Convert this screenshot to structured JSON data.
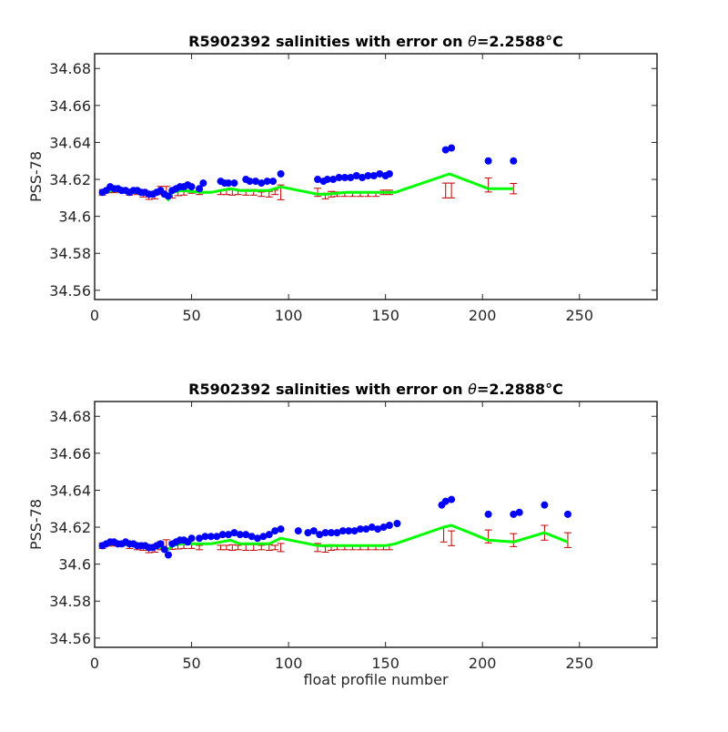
{
  "figure": {
    "xlabel": "float profile number"
  },
  "colors": {
    "float": "#0000ff",
    "mapped": "#00ff00",
    "error": "#c00000"
  },
  "chart_data": [
    {
      "type": "scatter",
      "title_prefix": "R5902392 salinities with error on ",
      "title_theta": "θ",
      "title_value": "=2.2588",
      "title_unit": "°C",
      "ylabel": "PSS-78",
      "xlabel": "",
      "xlim": [
        0,
        290
      ],
      "ylim": [
        34.555,
        34.688
      ],
      "xticks": [
        0,
        50,
        100,
        150,
        200,
        250
      ],
      "yticks": [
        34.56,
        34.58,
        34.6,
        34.62,
        34.64,
        34.66,
        34.68
      ],
      "ytick_labels": [
        "34.56",
        "34.58",
        "34.6",
        "34.62",
        "34.64",
        "34.66",
        "34.68"
      ],
      "grid": false,
      "float_salinity": {
        "x": [
          4,
          6,
          8,
          10,
          12,
          14,
          16,
          18,
          20,
          22,
          24,
          26,
          28,
          30,
          32,
          34,
          36,
          38,
          40,
          42,
          44,
          46,
          48,
          50,
          54,
          56,
          65,
          67,
          69,
          72,
          78,
          80,
          83,
          86,
          89,
          92,
          96,
          115,
          118,
          120,
          123,
          126,
          129,
          132,
          135,
          138,
          141,
          144,
          147,
          150,
          152,
          181,
          184,
          203,
          216
        ],
        "y": [
          34.613,
          34.614,
          34.616,
          34.615,
          34.615,
          34.614,
          34.614,
          34.613,
          34.614,
          34.614,
          34.613,
          34.613,
          34.612,
          34.612,
          34.613,
          34.614,
          34.612,
          34.611,
          34.614,
          34.615,
          34.616,
          34.616,
          34.617,
          34.616,
          34.615,
          34.618,
          34.619,
          34.618,
          34.618,
          34.618,
          34.62,
          34.619,
          34.619,
          34.618,
          34.619,
          34.619,
          34.623,
          34.62,
          34.619,
          34.62,
          34.62,
          34.621,
          34.621,
          34.621,
          34.622,
          34.621,
          34.622,
          34.622,
          34.623,
          34.622,
          34.623,
          34.636,
          34.637,
          34.63,
          34.63
        ]
      },
      "mapped_salinity": {
        "x": [
          4,
          10,
          20,
          30,
          35,
          38,
          40,
          45,
          55,
          60,
          70,
          75,
          80,
          90,
          96,
          115,
          120,
          130,
          140,
          150,
          155,
          183,
          203,
          216
        ],
        "y": [
          34.613,
          34.614,
          34.613,
          34.612,
          34.613,
          34.609,
          34.613,
          34.614,
          34.613,
          34.613,
          34.615,
          34.614,
          34.614,
          34.614,
          34.616,
          34.612,
          34.612,
          34.613,
          34.613,
          34.613,
          34.613,
          34.623,
          34.615,
          34.615
        ]
      },
      "mapped_error": {
        "x": [
          4,
          7,
          10,
          14,
          18,
          22,
          25,
          28,
          31,
          34,
          37,
          40,
          43,
          46,
          50,
          54,
          65,
          68,
          71,
          74,
          78,
          82,
          86,
          90,
          93,
          96,
          115,
          119,
          122,
          125,
          129,
          133,
          137,
          141,
          145,
          149,
          152,
          181,
          184,
          203,
          216
        ],
        "y": [
          34.613,
          34.614,
          34.614,
          34.614,
          34.613,
          34.613,
          34.612,
          34.611,
          34.611,
          34.614,
          34.614,
          34.612,
          34.613,
          34.613,
          34.614,
          34.613,
          34.613,
          34.613,
          34.613,
          34.613,
          34.613,
          34.613,
          34.612,
          34.612,
          34.613,
          34.613,
          34.613,
          34.611,
          34.612,
          34.612,
          34.612,
          34.612,
          34.612,
          34.612,
          34.612,
          34.613,
          34.613,
          34.614,
          34.614,
          34.617,
          34.615
        ],
        "err": [
          0.0015,
          0.0012,
          0.0012,
          0.0012,
          0.0015,
          0.0012,
          0.0015,
          0.0018,
          0.0015,
          0.0022,
          0.0022,
          0.002,
          0.0018,
          0.0015,
          0.0015,
          0.0012,
          0.0012,
          0.0012,
          0.0015,
          0.0012,
          0.0015,
          0.0015,
          0.0012,
          0.0015,
          0.0012,
          0.004,
          0.0022,
          0.0015,
          0.0015,
          0.0012,
          0.0012,
          0.0012,
          0.0012,
          0.0012,
          0.0012,
          0.0012,
          0.0012,
          0.004,
          0.004,
          0.0038,
          0.0028
        ]
      }
    },
    {
      "type": "scatter",
      "title_prefix": "R5902392 salinities with error on ",
      "title_theta": "θ",
      "title_value": "=2.2888",
      "title_unit": "°C",
      "ylabel": "PSS-78",
      "xlabel": "float profile number",
      "xlim": [
        0,
        290
      ],
      "ylim": [
        34.555,
        34.688
      ],
      "xticks": [
        0,
        50,
        100,
        150,
        200,
        250
      ],
      "yticks": [
        34.56,
        34.58,
        34.6,
        34.62,
        34.64,
        34.66,
        34.68
      ],
      "ytick_labels": [
        "34.56",
        "34.58",
        "34.6",
        "34.62",
        "34.64",
        "34.66",
        "34.68"
      ],
      "grid": false,
      "float_salinity": {
        "x": [
          4,
          6,
          8,
          10,
          12,
          14,
          16,
          18,
          20,
          22,
          24,
          26,
          28,
          30,
          32,
          34,
          36,
          38,
          40,
          42,
          44,
          46,
          48,
          50,
          54,
          57,
          60,
          63,
          66,
          69,
          72,
          75,
          78,
          81,
          84,
          87,
          90,
          93,
          96,
          105,
          110,
          113,
          116,
          119,
          122,
          125,
          128,
          131,
          134,
          137,
          140,
          143,
          146,
          149,
          152,
          156,
          179,
          181,
          184,
          203,
          216,
          219,
          232,
          244
        ],
        "y": [
          34.61,
          34.611,
          34.612,
          34.612,
          34.611,
          34.611,
          34.612,
          34.611,
          34.611,
          34.61,
          34.61,
          34.61,
          34.609,
          34.609,
          34.61,
          34.611,
          34.608,
          34.605,
          34.611,
          34.612,
          34.613,
          34.613,
          34.612,
          34.614,
          34.614,
          34.615,
          34.615,
          34.615,
          34.616,
          34.616,
          34.617,
          34.616,
          34.616,
          34.615,
          34.614,
          34.615,
          34.616,
          34.618,
          34.619,
          34.618,
          34.617,
          34.618,
          34.616,
          34.617,
          34.617,
          34.617,
          34.618,
          34.618,
          34.618,
          34.619,
          34.619,
          34.62,
          34.619,
          34.62,
          34.621,
          34.622,
          34.632,
          34.634,
          34.635,
          34.627,
          34.627,
          34.628,
          34.632,
          34.627
        ]
      },
      "mapped_salinity": {
        "x": [
          4,
          10,
          20,
          30,
          35,
          38,
          40,
          45,
          55,
          60,
          70,
          75,
          80,
          90,
          96,
          115,
          120,
          130,
          140,
          150,
          155,
          180,
          184,
          203,
          216,
          232,
          244
        ],
        "y": [
          34.61,
          34.611,
          34.61,
          34.609,
          34.609,
          34.608,
          34.61,
          34.611,
          34.611,
          34.611,
          34.613,
          34.611,
          34.611,
          34.611,
          34.614,
          34.61,
          34.61,
          34.61,
          34.61,
          34.61,
          34.611,
          34.62,
          34.621,
          34.613,
          34.612,
          34.617,
          34.612
        ]
      },
      "mapped_error": {
        "x": [
          4,
          7,
          10,
          14,
          18,
          22,
          25,
          28,
          31,
          34,
          37,
          40,
          43,
          46,
          50,
          54,
          65,
          68,
          71,
          74,
          78,
          82,
          86,
          90,
          93,
          96,
          115,
          119,
          122,
          125,
          129,
          133,
          137,
          141,
          145,
          149,
          152,
          180,
          184,
          203,
          216,
          232,
          244
        ],
        "y": [
          34.61,
          34.611,
          34.611,
          34.611,
          34.61,
          34.609,
          34.609,
          34.608,
          34.608,
          34.61,
          34.611,
          34.61,
          34.61,
          34.61,
          34.61,
          34.609,
          34.609,
          34.609,
          34.609,
          34.609,
          34.609,
          34.609,
          34.609,
          34.609,
          34.609,
          34.609,
          34.609,
          34.608,
          34.609,
          34.609,
          34.609,
          34.609,
          34.609,
          34.609,
          34.609,
          34.609,
          34.609,
          34.616,
          34.614,
          34.615,
          34.613,
          34.617,
          34.613
        ],
        "err": [
          0.0015,
          0.0012,
          0.0012,
          0.0012,
          0.0015,
          0.0012,
          0.0015,
          0.0018,
          0.0015,
          0.0022,
          0.0022,
          0.002,
          0.0018,
          0.0015,
          0.0015,
          0.0012,
          0.0012,
          0.0012,
          0.0015,
          0.0012,
          0.0015,
          0.0015,
          0.0012,
          0.0015,
          0.0012,
          0.0022,
          0.0022,
          0.0015,
          0.0015,
          0.0012,
          0.0012,
          0.0012,
          0.0012,
          0.0012,
          0.0012,
          0.0012,
          0.0012,
          0.004,
          0.004,
          0.0035,
          0.0035,
          0.004,
          0.004
        ]
      }
    }
  ]
}
